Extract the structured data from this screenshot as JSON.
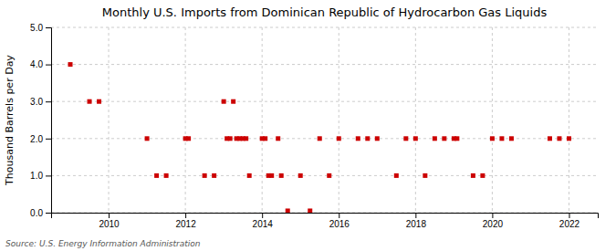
{
  "chart_data": {
    "type": "scatter",
    "title": "Monthly U.S. Imports from Dominican Republic of Hydrocarbon Gas Liquids",
    "y_label": "Thousand Barrels per Day",
    "source": "Source: U.S. Energy Information Administration",
    "color": "#cc0000",
    "marker": "square",
    "grid": true,
    "xlim": [
      2008.5,
      2022.75
    ],
    "xticks": [
      2010,
      2012,
      2014,
      2016,
      2018,
      2020,
      2022
    ],
    "ylim": [
      0,
      5.0
    ],
    "yticks": [
      {
        "value": 0.0,
        "label": "0.0"
      },
      {
        "value": 1.0,
        "label": "1.0"
      },
      {
        "value": 2.0,
        "label": "2.0"
      },
      {
        "value": 3.0,
        "label": "3.0"
      },
      {
        "value": 4.0,
        "label": "4.0"
      },
      {
        "value": 5.0,
        "label": "5.0"
      }
    ],
    "x": [
      2009.0,
      2009.5,
      2009.75,
      2011.0,
      2011.25,
      2011.5,
      2012.0,
      2012.083,
      2012.5,
      2012.75,
      2013.0,
      2013.083,
      2013.167,
      2013.25,
      2013.333,
      2013.417,
      2013.5,
      2013.583,
      2013.667,
      2014.0,
      2014.083,
      2014.167,
      2014.25,
      2014.417,
      2014.5,
      2014.667,
      2015.0,
      2015.25,
      2015.5,
      2015.75,
      2016.0,
      2016.5,
      2016.75,
      2017.0,
      2017.5,
      2017.75,
      2018.0,
      2018.25,
      2018.5,
      2018.75,
      2019.0,
      2019.083,
      2019.5,
      2019.75,
      2020.0,
      2020.25,
      2020.5,
      2021.5,
      2021.75,
      2022.0
    ],
    "values": [
      4.0,
      3.0,
      3.0,
      2.0,
      1.0,
      1.0,
      2.0,
      2.0,
      1.0,
      1.0,
      3.0,
      2.0,
      2.0,
      3.0,
      2.0,
      2.0,
      2.0,
      2.0,
      1.0,
      2.0,
      2.0,
      1.0,
      1.0,
      2.0,
      1.0,
      0.05,
      1.0,
      0.05,
      2.0,
      1.0,
      2.0,
      2.0,
      2.0,
      2.0,
      1.0,
      2.0,
      2.0,
      1.0,
      2.0,
      2.0,
      2.0,
      2.0,
      1.0,
      1.0,
      2.0,
      2.0,
      2.0,
      2.0,
      2.0,
      2.0
    ]
  }
}
